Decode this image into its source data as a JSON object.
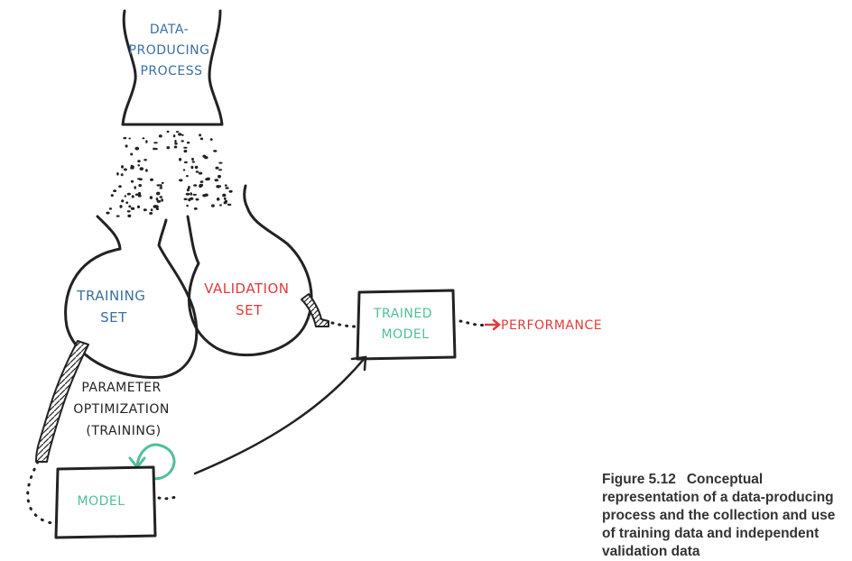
{
  "labels": {
    "data_producing_process": [
      "DATA-",
      "PRODUCING",
      "PROCESS"
    ],
    "training_set": [
      "TRAINING",
      "SET"
    ],
    "validation_set": [
      "VALIDATION",
      "SET"
    ],
    "trained_model": [
      "TRAINED",
      "MODEL"
    ],
    "performance": "PERFORMANCE",
    "parameter_optimization": [
      "PARAMETER",
      "OPTIMIZATION",
      "(TRAINING)"
    ],
    "model": "MODEL"
  },
  "caption": {
    "number": "Figure 5.12",
    "text": "Conceptual representation of a data-producing process and the collection and use of training data and independent validation data"
  },
  "colors": {
    "blue": "#3a6fa0",
    "red": "#e23a3a",
    "teal": "#4fbf9a",
    "ink": "#222222"
  }
}
